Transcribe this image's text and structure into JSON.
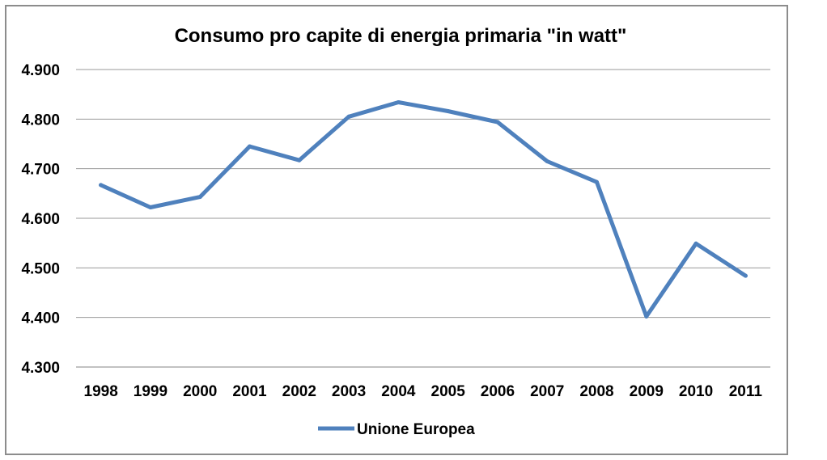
{
  "chart_data": {
    "type": "line",
    "title": "Consumo pro capite di energia primaria \"in watt\"",
    "xlabel": "",
    "ylabel": "",
    "categories": [
      "1998",
      "1999",
      "2000",
      "2001",
      "2002",
      "2003",
      "2004",
      "2005",
      "2006",
      "2007",
      "2008",
      "2009",
      "2010",
      "2011"
    ],
    "series": [
      {
        "name": "Unione Europea",
        "color": "#4f81bd",
        "values": [
          4667,
          4622,
          4643,
          4745,
          4717,
          4805,
          4834,
          4816,
          4794,
          4715,
          4673,
          4402,
          4549,
          4484
        ]
      }
    ],
    "ylim": [
      4300,
      4900
    ],
    "yticks": [
      4300,
      4400,
      4500,
      4600,
      4700,
      4800,
      4900
    ],
    "ytick_labels": [
      "4.300",
      "4.400",
      "4.500",
      "4.600",
      "4.700",
      "4.800",
      "4.900"
    ],
    "grid": true,
    "legend_position": "bottom"
  }
}
